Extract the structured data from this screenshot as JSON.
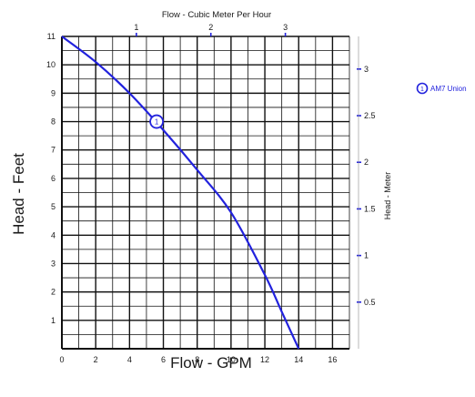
{
  "chart_data": {
    "type": "line",
    "title_top_axis": "Flow - Cubic Meter Per Hour",
    "xlabel": "Flow - GPM",
    "ylabel": "Head - Feet",
    "ylabel_right": "Head - Meter",
    "x": {
      "min": 0,
      "max": 17,
      "ticks": [
        0,
        2,
        4,
        6,
        8,
        10,
        12,
        14,
        16
      ]
    },
    "y": {
      "min": 0,
      "max": 11,
      "ticks": [
        1,
        2,
        3,
        4,
        5,
        6,
        7,
        8,
        9,
        10,
        11
      ]
    },
    "x_top": {
      "min": 0,
      "max": 3.86,
      "ticks": [
        1,
        2,
        3
      ]
    },
    "y_right": {
      "min": 0,
      "max": 3.35,
      "ticks": [
        0.5,
        1,
        1.5,
        2,
        2.5,
        3
      ]
    },
    "grid": true,
    "legend_position": "right",
    "series": [
      {
        "name": "AM7 Union",
        "marker_label": "1",
        "marker_at": {
          "x": 5.6,
          "y": 8.0
        },
        "color": "#2222dd",
        "points": [
          {
            "x": 0,
            "y": 11.0
          },
          {
            "x": 2,
            "y": 10.1
          },
          {
            "x": 4,
            "y": 9.0
          },
          {
            "x": 6,
            "y": 7.7
          },
          {
            "x": 8,
            "y": 6.3
          },
          {
            "x": 10,
            "y": 4.8
          },
          {
            "x": 12,
            "y": 2.6
          },
          {
            "x": 13,
            "y": 1.3
          },
          {
            "x": 14,
            "y": 0.0
          }
        ]
      }
    ]
  }
}
